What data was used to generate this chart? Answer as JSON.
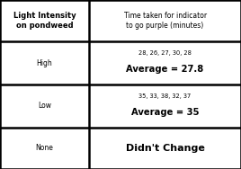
{
  "header_col1": "Light Intensity\non pondweed",
  "header_col2": "Time taken for indicator\nto go purple (minutes)",
  "rows": [
    {
      "label": "High",
      "small_text": "28, 26, 27, 30, 28",
      "avg_text": "Average = 27.8"
    },
    {
      "label": "Low",
      "small_text": "35, 33, 38, 32, 37",
      "avg_text": "Average = 35"
    },
    {
      "label": "None",
      "small_text": "",
      "avg_text": "Didn't Change"
    }
  ],
  "col_div": 0.37,
  "row_divs": [
    0.0,
    0.245,
    0.5,
    0.755,
    1.0
  ],
  "bg_color": "#ffffff",
  "line_color": "black",
  "text_color": "black",
  "lw": 1.8,
  "header_col1_fontsize": 6.0,
  "header_col2_fontsize": 5.5,
  "label_fontsize": 5.5,
  "small_fontsize": 4.8,
  "avg_fontsize": 7.2,
  "none_fontsize": 8.0
}
